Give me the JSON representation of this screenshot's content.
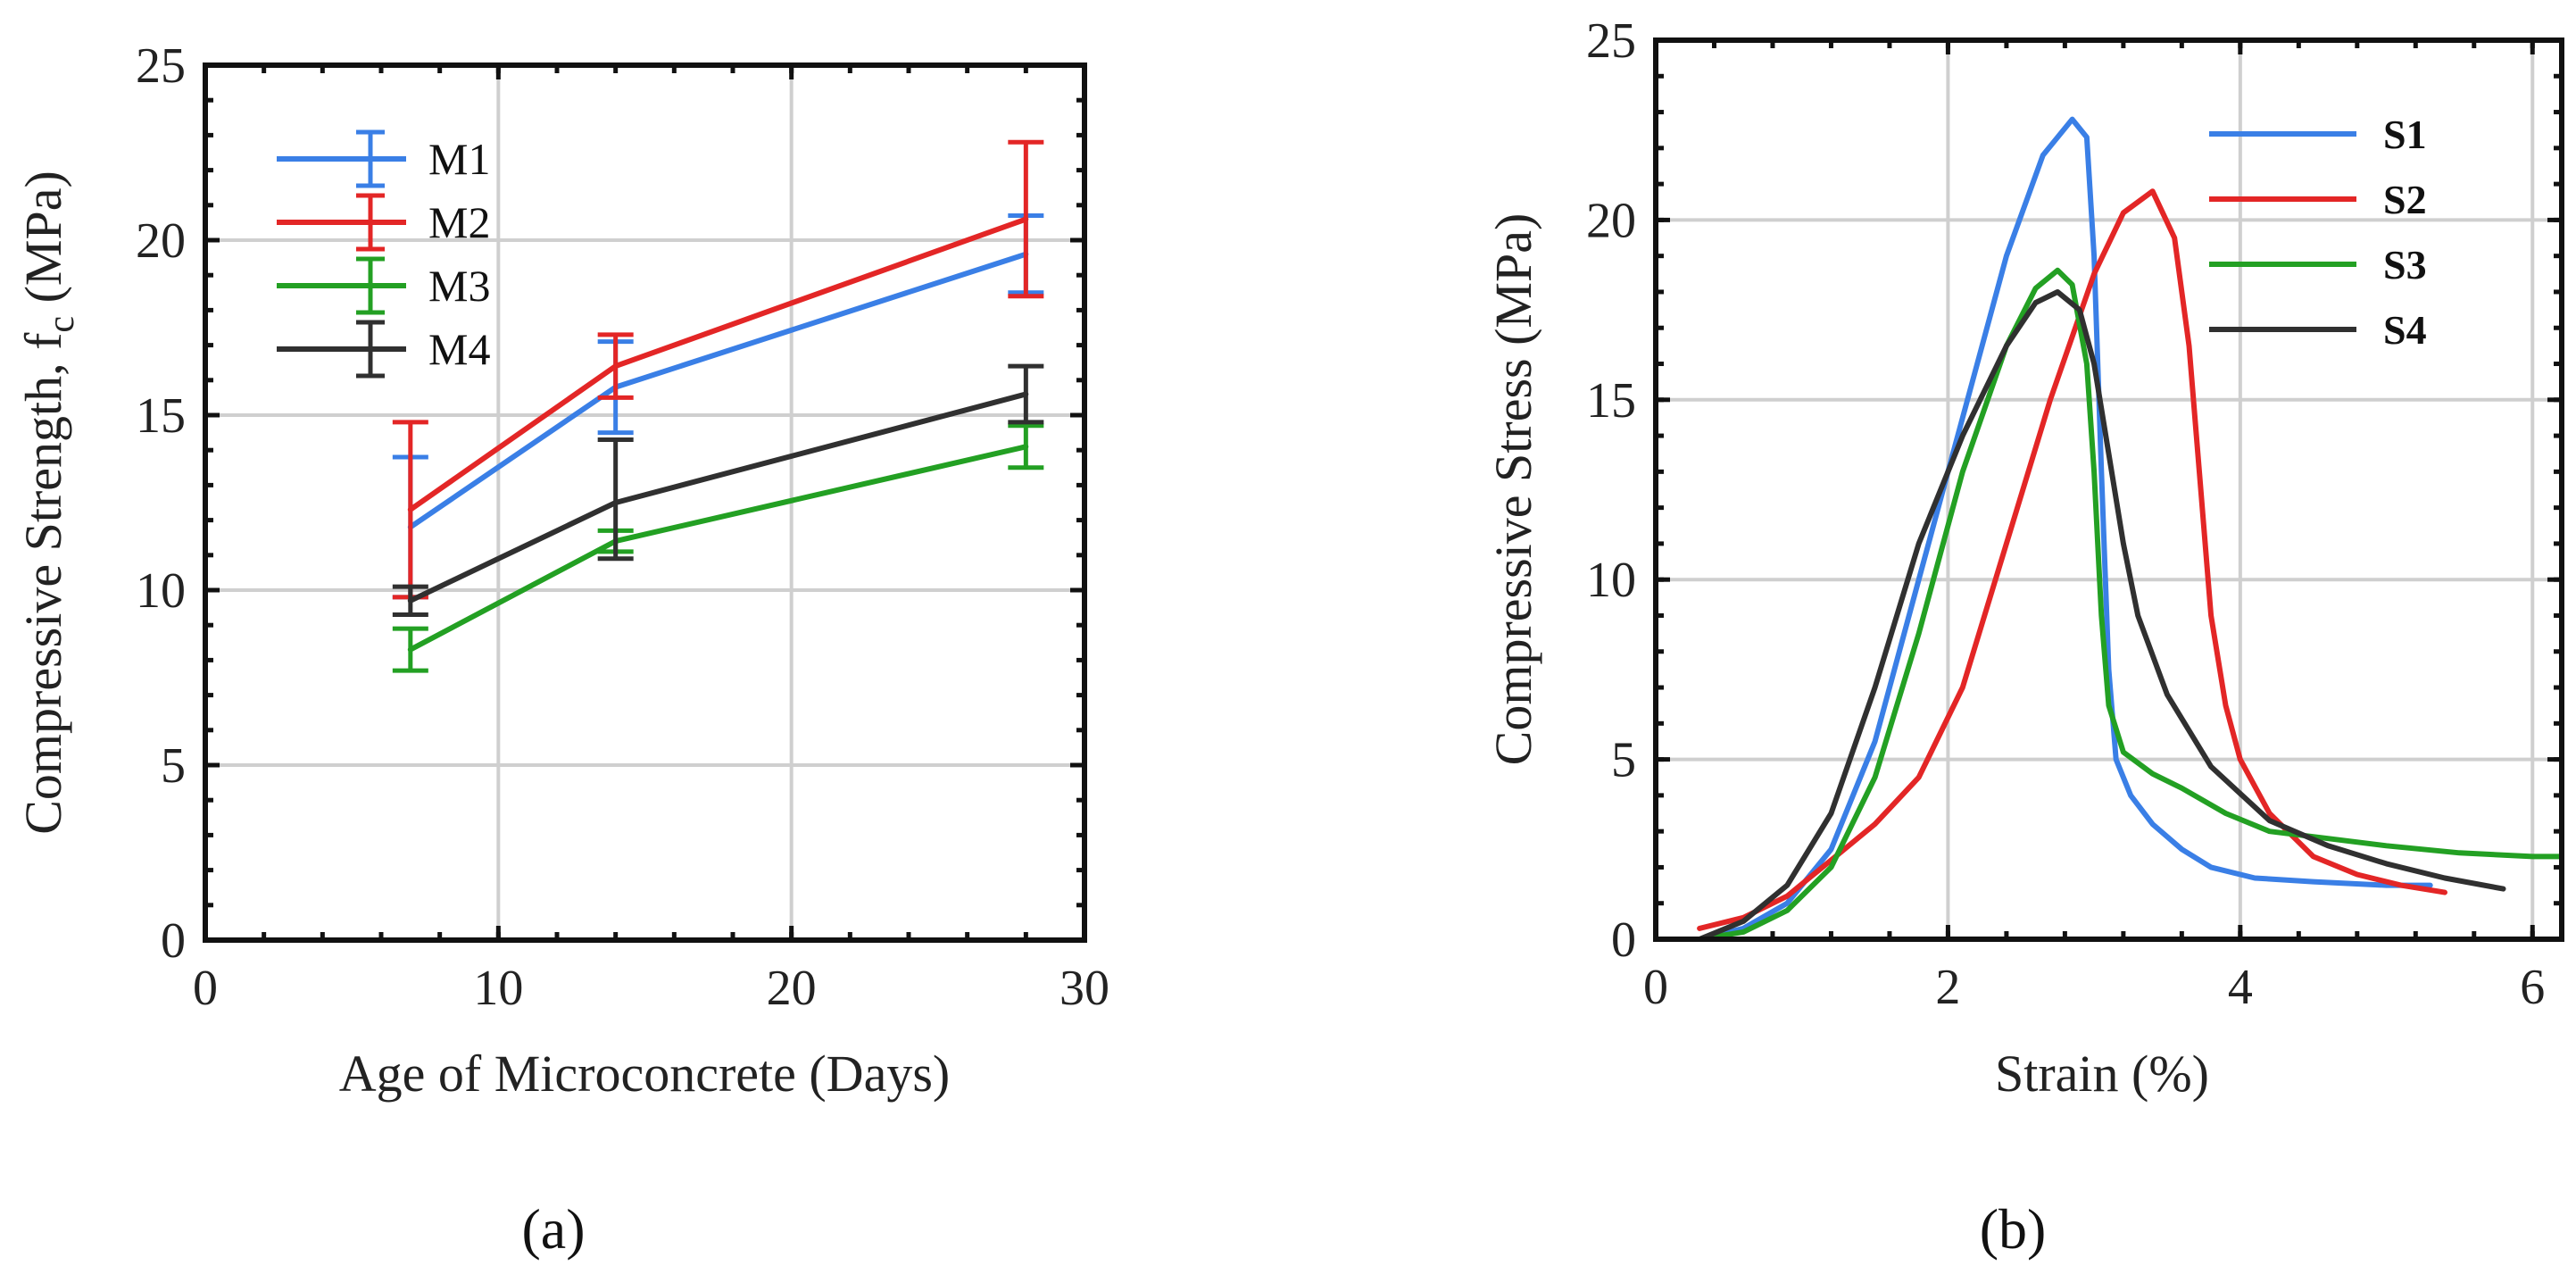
{
  "chart_data": [
    {
      "type": "line",
      "panel_label": "(a)",
      "title": "",
      "xlabel": "Age of Microconcrete (Days)",
      "ylabel_main": "Compressive Strength, f",
      "ylabel_sub": "c",
      "ylabel_unit": " (MPa)",
      "xlim": [
        0,
        30
      ],
      "ylim": [
        0,
        25
      ],
      "xticks": [
        "0",
        "10",
        "20",
        "30"
      ],
      "yticks": [
        "0",
        "5",
        "10",
        "15",
        "20",
        "25"
      ],
      "grid": true,
      "legend_position": "top-left",
      "error_bars": true,
      "x": [
        7,
        14,
        28
      ],
      "series": [
        {
          "name": "M1",
          "color": "#3a7fe6",
          "values": [
            11.8,
            15.8,
            19.6
          ],
          "err_lo": [
            9.8,
            14.5,
            18.5
          ],
          "err_hi": [
            13.8,
            17.1,
            20.7
          ]
        },
        {
          "name": "M2",
          "color": "#e32626",
          "values": [
            12.3,
            16.4,
            20.6
          ],
          "err_lo": [
            9.8,
            15.5,
            18.4
          ],
          "err_hi": [
            14.8,
            17.3,
            22.8
          ]
        },
        {
          "name": "M3",
          "color": "#23a023",
          "values": [
            8.3,
            11.4,
            14.1
          ],
          "err_lo": [
            7.7,
            11.1,
            13.5
          ],
          "err_hi": [
            8.9,
            11.7,
            14.7
          ]
        },
        {
          "name": "M4",
          "color": "#303030",
          "values": [
            9.7,
            12.5,
            15.6
          ],
          "err_lo": [
            9.3,
            10.9,
            14.8
          ],
          "err_hi": [
            10.1,
            14.3,
            16.4
          ]
        }
      ]
    },
    {
      "type": "line",
      "panel_label": "(b)",
      "title": "",
      "xlabel": "Strain (%)",
      "ylabel": "Compressive Stress (MPa)",
      "xlim": [
        0,
        6.2
      ],
      "ylim": [
        0,
        25
      ],
      "xticks": [
        "0",
        "2",
        "4",
        "6"
      ],
      "yticks": [
        "0",
        "5",
        "10",
        "15",
        "20",
        "25"
      ],
      "grid": true,
      "legend_position": "top-right",
      "series": [
        {
          "name": "S1",
          "color": "#3a7fe6",
          "x": [
            0.3,
            0.6,
            0.9,
            1.2,
            1.5,
            1.8,
            2.1,
            2.4,
            2.65,
            2.85,
            2.95,
            3.0,
            3.05,
            3.1,
            3.15,
            3.25,
            3.4,
            3.6,
            3.8,
            4.1,
            4.5,
            5.0,
            5.3
          ],
          "values": [
            0.0,
            0.3,
            1.0,
            2.5,
            5.5,
            10.0,
            14.5,
            19.0,
            21.8,
            22.8,
            22.3,
            19.0,
            13.0,
            7.5,
            5.0,
            4.0,
            3.2,
            2.5,
            2.0,
            1.7,
            1.6,
            1.5,
            1.5
          ]
        },
        {
          "name": "S2",
          "color": "#e32626",
          "x": [
            0.3,
            0.6,
            0.9,
            1.2,
            1.5,
            1.8,
            2.1,
            2.4,
            2.7,
            3.0,
            3.2,
            3.4,
            3.55,
            3.65,
            3.72,
            3.8,
            3.9,
            4.0,
            4.2,
            4.5,
            4.8,
            5.1,
            5.4
          ],
          "values": [
            0.3,
            0.6,
            1.2,
            2.2,
            3.2,
            4.5,
            7.0,
            11.0,
            15.0,
            18.5,
            20.2,
            20.8,
            19.5,
            16.5,
            13.0,
            9.0,
            6.5,
            5.0,
            3.5,
            2.3,
            1.8,
            1.5,
            1.3
          ]
        },
        {
          "name": "S3",
          "color": "#23a023",
          "x": [
            0.3,
            0.6,
            0.9,
            1.2,
            1.5,
            1.8,
            2.1,
            2.4,
            2.6,
            2.75,
            2.85,
            2.95,
            3.0,
            3.05,
            3.1,
            3.2,
            3.4,
            3.6,
            3.9,
            4.2,
            4.6,
            5.0,
            5.5,
            6.0,
            6.2
          ],
          "values": [
            0.0,
            0.2,
            0.8,
            2.0,
            4.5,
            8.5,
            13.0,
            16.5,
            18.1,
            18.6,
            18.2,
            16.0,
            13.0,
            9.0,
            6.5,
            5.2,
            4.6,
            4.2,
            3.5,
            3.0,
            2.8,
            2.6,
            2.4,
            2.3,
            2.3
          ]
        },
        {
          "name": "S4",
          "color": "#303030",
          "x": [
            0.3,
            0.6,
            0.9,
            1.2,
            1.5,
            1.8,
            2.1,
            2.4,
            2.6,
            2.75,
            2.9,
            3.0,
            3.1,
            3.2,
            3.3,
            3.5,
            3.8,
            4.2,
            4.6,
            5.0,
            5.4,
            5.8
          ],
          "values": [
            0.0,
            0.5,
            1.5,
            3.5,
            7.0,
            11.0,
            14.0,
            16.5,
            17.7,
            18.0,
            17.5,
            16.0,
            13.5,
            11.0,
            9.0,
            6.8,
            4.8,
            3.3,
            2.6,
            2.1,
            1.7,
            1.4
          ]
        }
      ]
    }
  ]
}
